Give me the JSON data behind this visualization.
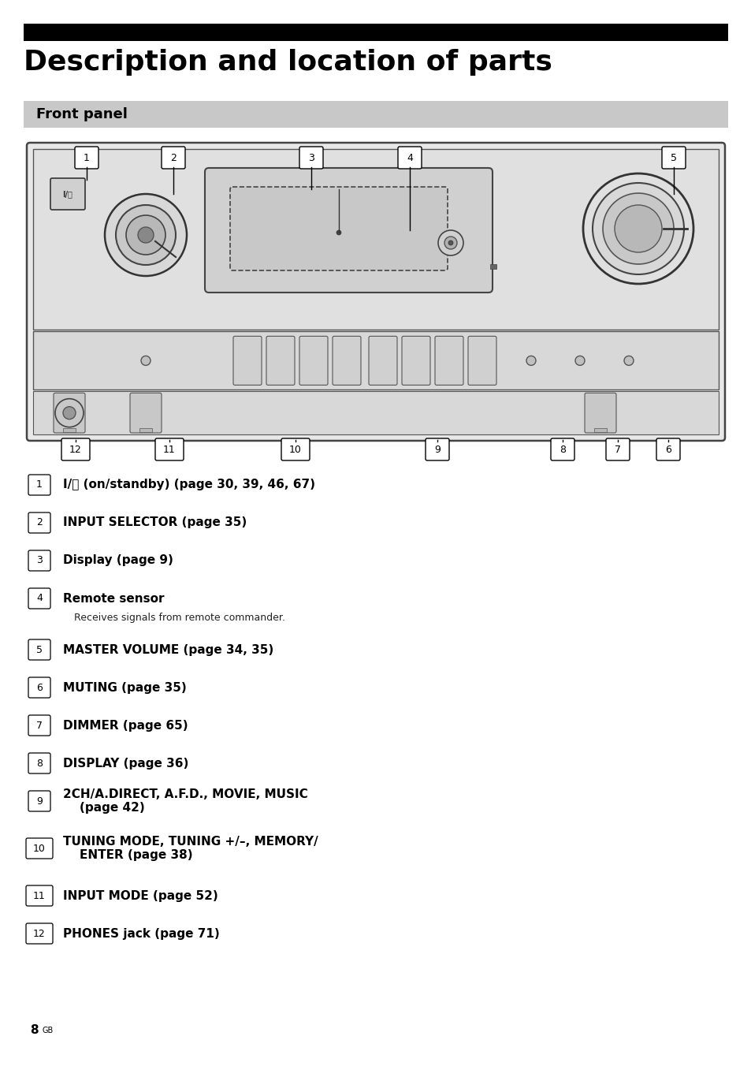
{
  "title": "Description and location of parts",
  "subtitle": "Front panel",
  "background_color": "#ffffff",
  "header_bar_color": "#000000",
  "subheader_bg_color": "#c8c8c8",
  "descriptions": [
    {
      "num": "1",
      "bold": "I/⏻ (on/standby) (page 30, 39, 46, 67)",
      "sub": null
    },
    {
      "num": "2",
      "bold": "INPUT SELECTOR (page 35)",
      "sub": null
    },
    {
      "num": "3",
      "bold": "Display (page 9)",
      "sub": null
    },
    {
      "num": "4",
      "bold": "Remote sensor",
      "sub": "Receives signals from remote commander."
    },
    {
      "num": "5",
      "bold": "MASTER VOLUME (page 34, 35)",
      "sub": null
    },
    {
      "num": "6",
      "bold": "MUTING (page 35)",
      "sub": null
    },
    {
      "num": "7",
      "bold": "DIMMER (page 65)",
      "sub": null
    },
    {
      "num": "8",
      "bold": "DISPLAY (page 36)",
      "sub": null
    },
    {
      "num": "9",
      "bold": "2CH/A.DIRECT, A.F.D., MOVIE, MUSIC\n    (page 42)",
      "sub": null
    },
    {
      "num": "10",
      "bold": "TUNING MODE, TUNING +/–, MEMORY/\n    ENTER (page 38)",
      "sub": null
    },
    {
      "num": "11",
      "bold": "INPUT MODE (page 52)",
      "sub": null
    },
    {
      "num": "12",
      "bold": "PHONES jack (page 71)",
      "sub": null
    }
  ],
  "page_num": "8",
  "page_suffix": "GB"
}
